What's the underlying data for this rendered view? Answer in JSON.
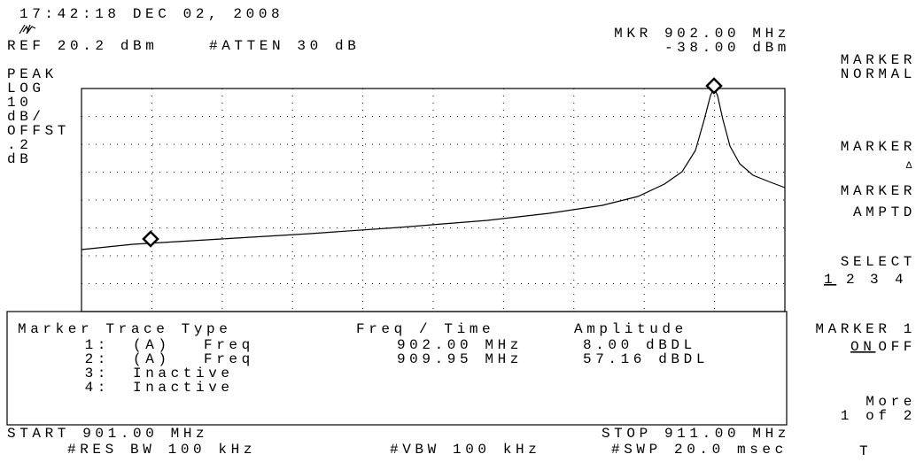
{
  "header": {
    "timestamp": "17:42:18 DEC 02, 2008",
    "ref": "REF 20.2 dBm",
    "atten": "#ATTEN 30 dB",
    "marker_freq": "MKR 902.00 MHz",
    "marker_amp": "-38.00 dBm"
  },
  "left_panel": [
    "PEAK",
    "LOG",
    "10",
    "dB/",
    "OFFST",
    ".2",
    "dB"
  ],
  "softkeys": {
    "marker_normal": [
      "MARKER",
      "NORMAL"
    ],
    "marker_delta": [
      "MARKER",
      "Δ"
    ],
    "marker_amptd": [
      "MARKER",
      "AMPTD"
    ],
    "select": {
      "label": "SELECT",
      "options": [
        "1",
        "2",
        "3",
        "4"
      ]
    },
    "marker1": {
      "label": "MARKER 1",
      "options": [
        "ON",
        "OFF"
      ]
    },
    "more": [
      "More",
      "1 of 2"
    ],
    "bottom": "T"
  },
  "table": {
    "headers": [
      "Marker Trace Type",
      "Freq / Time",
      "Amplitude"
    ],
    "rows": [
      [
        "1:",
        "(A)",
        "Freq",
        "902.00 MHz",
        "8.00 dBDL"
      ],
      [
        "2:",
        "(A)",
        "Freq",
        "909.95 MHz",
        "57.16 dBDL"
      ],
      [
        "3:",
        "Inactive"
      ],
      [
        "4:",
        "Inactive"
      ]
    ]
  },
  "footer": {
    "start": "START 901.00 MHz",
    "stop": "STOP 911.00 MHz",
    "rbw": "#RES BW 100 kHz",
    "vbw": "#VBW 100 kHz",
    "sweep": "#SWP 20.0 msec"
  }
}
